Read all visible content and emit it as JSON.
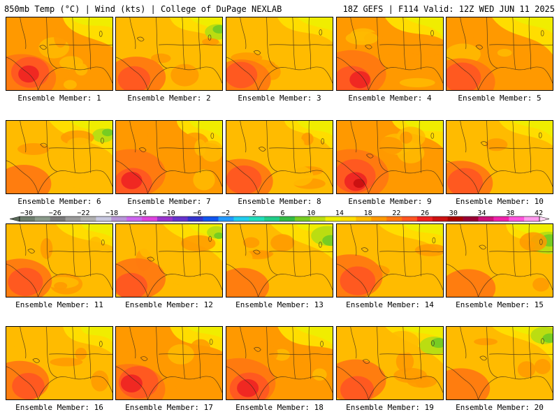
{
  "header": {
    "left": "850mb Temp (°C) | Wind (kts) | College of DuPage NEXLAB",
    "right": "18Z GEFS | F114 Valid: 12Z WED JUN 11 2025"
  },
  "caption_prefix": "Ensemble Member:",
  "members": [
    {
      "number": "1",
      "warmth": 0.8,
      "green": 0.0
    },
    {
      "number": "2",
      "warmth": 0.62,
      "green": 0.45
    },
    {
      "number": "3",
      "warmth": 0.62,
      "green": 0.0
    },
    {
      "number": "4",
      "warmth": 0.8,
      "green": 0.0
    },
    {
      "number": "5",
      "warmth": 0.78,
      "green": 0.0
    },
    {
      "number": "6",
      "warmth": 0.55,
      "green": 0.35
    },
    {
      "number": "7",
      "warmth": 0.82,
      "green": 0.0
    },
    {
      "number": "8",
      "warmth": 0.72,
      "green": 0.0
    },
    {
      "number": "9",
      "warmth": 0.92,
      "green": 0.0
    },
    {
      "number": "10",
      "warmth": 0.72,
      "green": 0.0
    },
    {
      "number": "11",
      "warmth": 0.7,
      "green": 0.0
    },
    {
      "number": "12",
      "warmth": 0.62,
      "green": 0.25
    },
    {
      "number": "13",
      "warmth": 0.52,
      "green": 0.7
    },
    {
      "number": "14",
      "warmth": 0.72,
      "green": 0.0
    },
    {
      "number": "15",
      "warmth": 0.55,
      "green": 0.85
    },
    {
      "number": "16",
      "warmth": 0.62,
      "green": 0.0
    },
    {
      "number": "17",
      "warmth": 0.86,
      "green": 0.0
    },
    {
      "number": "18",
      "warmth": 0.86,
      "green": 0.0
    },
    {
      "number": "19",
      "warmth": 0.66,
      "green": 0.6
    },
    {
      "number": "20",
      "warmth": 0.6,
      "green": 0.55
    }
  ],
  "colorbar": {
    "labels": [
      "−30",
      "−26",
      "−22",
      "−18",
      "−14",
      "−10",
      "−6",
      "−2",
      "2",
      "6",
      "10",
      "14",
      "18",
      "22",
      "26",
      "30",
      "34",
      "38",
      "42"
    ],
    "colors": [
      "#6e7e6e",
      "#8a9a8a",
      "#7a7a7a",
      "#9a9a9a",
      "#b0b0b0",
      "#c8c8e0",
      "#b896d8",
      "#cc66ee",
      "#dd44dd",
      "#9933cc",
      "#6633cc",
      "#3333cc",
      "#1155ee",
      "#2299ff",
      "#22ccee",
      "#22ddbb",
      "#22cc88",
      "#33bb44",
      "#77cc22",
      "#bbdd11",
      "#eeee00",
      "#ffdd00",
      "#ffbb00",
      "#ff9900",
      "#ff7711",
      "#ff5522",
      "#ee2222",
      "#cc1111",
      "#aa0000",
      "#990033",
      "#cc1177",
      "#ee22aa",
      "#ff55dd",
      "#ff99ee"
    ]
  }
}
